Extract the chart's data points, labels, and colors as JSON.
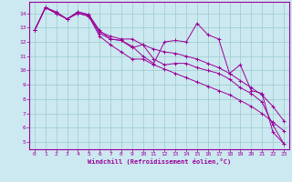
{
  "xlabel": "Windchill (Refroidissement éolien,°C)",
  "bg_color": "#cce8f0",
  "line_color": "#990099",
  "grid_color": "#99cccc",
  "xlim": [
    -0.5,
    23.5
  ],
  "ylim": [
    4.5,
    14.8
  ],
  "xticks": [
    0,
    1,
    2,
    3,
    4,
    5,
    6,
    7,
    8,
    9,
    10,
    11,
    12,
    13,
    14,
    15,
    16,
    17,
    18,
    19,
    20,
    21,
    22,
    23
  ],
  "yticks": [
    5,
    6,
    7,
    8,
    9,
    10,
    11,
    12,
    13,
    14
  ],
  "line1_x": [
    0,
    1,
    2,
    3,
    4,
    5,
    6,
    7,
    8,
    9,
    10,
    11,
    12,
    13,
    14,
    15,
    16,
    17,
    18,
    19,
    20,
    21,
    22,
    23
  ],
  "line1_y": [
    12.8,
    14.4,
    14.0,
    13.6,
    14.1,
    13.9,
    12.8,
    12.2,
    12.1,
    11.7,
    11.0,
    10.5,
    12.0,
    12.1,
    12.0,
    13.3,
    12.5,
    12.2,
    9.8,
    10.4,
    8.6,
    8.4,
    5.7,
    4.9
  ],
  "line2_x": [
    0,
    1,
    2,
    3,
    4,
    5,
    6,
    7,
    8,
    9,
    10,
    11,
    12,
    13,
    14,
    15,
    16,
    17,
    18,
    19,
    20,
    21,
    22,
    23
  ],
  "line2_y": [
    12.8,
    14.4,
    14.1,
    13.6,
    14.1,
    13.9,
    12.7,
    12.4,
    12.2,
    12.2,
    11.8,
    11.5,
    11.3,
    11.2,
    11.0,
    10.8,
    10.5,
    10.2,
    9.8,
    9.3,
    8.8,
    8.3,
    7.5,
    6.5
  ],
  "line3_x": [
    0,
    1,
    2,
    3,
    4,
    5,
    6,
    7,
    8,
    9,
    10,
    11,
    12,
    13,
    14,
    15,
    16,
    17,
    18,
    19,
    20,
    21,
    22,
    23
  ],
  "line3_y": [
    12.8,
    14.4,
    14.0,
    13.6,
    14.0,
    13.8,
    12.6,
    12.2,
    12.1,
    11.6,
    11.8,
    10.8,
    10.4,
    10.5,
    10.5,
    10.2,
    10.0,
    9.8,
    9.4,
    8.8,
    8.4,
    7.8,
    6.2,
    4.9
  ],
  "line4_x": [
    0,
    1,
    2,
    3,
    4,
    5,
    6,
    7,
    8,
    9,
    10,
    11,
    12,
    13,
    14,
    15,
    16,
    17,
    18,
    19,
    20,
    21,
    22,
    23
  ],
  "line4_y": [
    12.8,
    14.4,
    14.0,
    13.6,
    14.0,
    13.8,
    12.4,
    11.8,
    11.3,
    10.8,
    10.8,
    10.4,
    10.1,
    9.8,
    9.5,
    9.2,
    8.9,
    8.6,
    8.3,
    7.9,
    7.5,
    7.0,
    6.4,
    5.8
  ]
}
